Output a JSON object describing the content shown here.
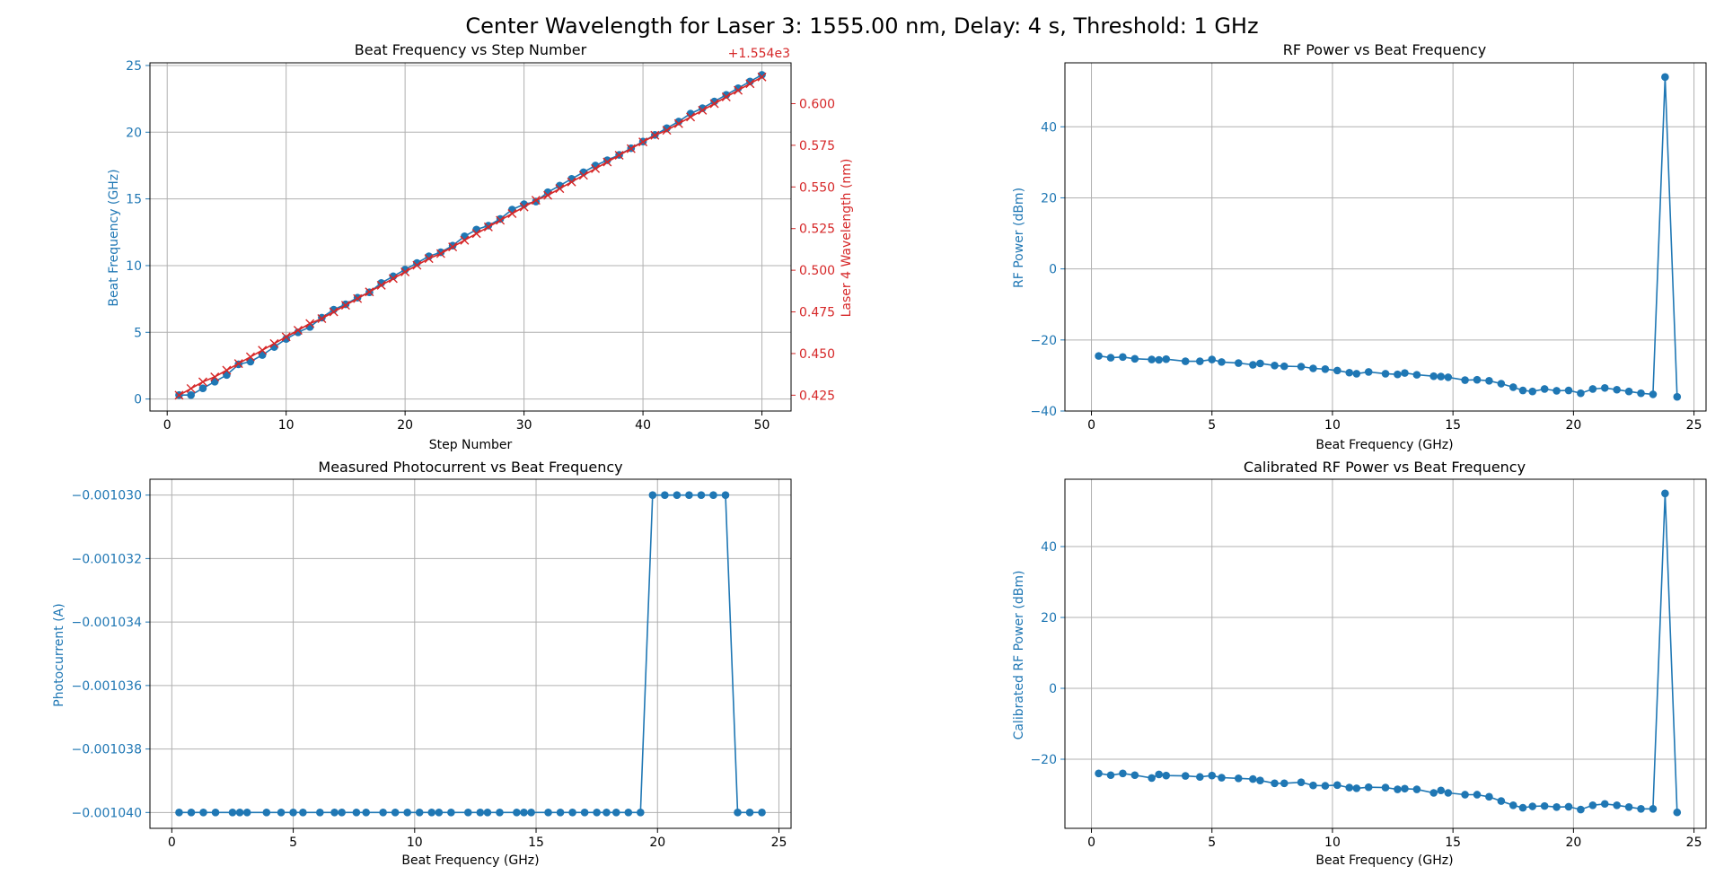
{
  "suptitle": "Center Wavelength for Laser 3: 1555.00 nm, Delay: 4 s, Threshold: 1 GHz",
  "colors": {
    "blue": "#1f77b4",
    "red": "#d62728",
    "grid": "#b0b0b0"
  },
  "chart_data": [
    {
      "type": "line",
      "title": "Beat Frequency vs Step Number",
      "xlabel": "Step Number",
      "ylabel": "Beat Frequency (GHz)",
      "y2label": "Laser 4 Wavelength (nm)",
      "y2_offset_label": "+1.554e3",
      "xlim": [
        -1.45,
        52.45
      ],
      "ylim": [
        -0.9,
        25.2
      ],
      "y2lim": [
        1554.4155,
        1554.6245
      ],
      "xticks": [
        "0",
        "10",
        "20",
        "30",
        "40",
        "50"
      ],
      "yticks": [
        "0",
        "5",
        "10",
        "15",
        "20",
        "25"
      ],
      "y2ticks": [
        "0.425",
        "0.450",
        "0.475",
        "0.500",
        "0.525",
        "0.550",
        "0.575",
        "0.600"
      ],
      "grid": true,
      "series": [
        {
          "axis": "left",
          "marker": "circle",
          "x": [
            1,
            2,
            3,
            4,
            5,
            6,
            7,
            8,
            9,
            10,
            11,
            12,
            13,
            14,
            15,
            16,
            17,
            18,
            19,
            20,
            21,
            22,
            23,
            24,
            25,
            26,
            27,
            28,
            29,
            30,
            31,
            32,
            33,
            34,
            35,
            36,
            37,
            38,
            39,
            40,
            41,
            42,
            43,
            44,
            45,
            46,
            47,
            48,
            49,
            50
          ],
          "values": [
            0.3,
            0.3,
            0.8,
            1.3,
            1.8,
            2.6,
            2.8,
            3.3,
            3.9,
            4.5,
            5.0,
            5.4,
            6.1,
            6.7,
            7.1,
            7.6,
            8.0,
            8.7,
            9.2,
            9.7,
            10.2,
            10.7,
            11.0,
            11.5,
            12.2,
            12.7,
            13.0,
            13.5,
            14.2,
            14.6,
            14.8,
            15.5,
            16.0,
            16.5,
            17.0,
            17.5,
            17.9,
            18.3,
            18.8,
            19.3,
            19.8,
            20.3,
            20.8,
            21.4,
            21.8,
            22.3,
            22.8,
            23.3,
            23.8,
            24.3
          ]
        },
        {
          "axis": "right",
          "marker": "x",
          "x": [
            1,
            2,
            3,
            4,
            5,
            6,
            7,
            8,
            9,
            10,
            11,
            12,
            13,
            14,
            15,
            16,
            17,
            18,
            19,
            20,
            21,
            22,
            23,
            24,
            25,
            26,
            27,
            28,
            29,
            30,
            31,
            32,
            33,
            34,
            35,
            36,
            37,
            38,
            39,
            40,
            41,
            42,
            43,
            44,
            45,
            46,
            47,
            48,
            49,
            50
          ],
          "values": [
            1554.425,
            1554.429,
            1554.433,
            1554.436,
            1554.44,
            1554.444,
            1554.448,
            1554.452,
            1554.456,
            1554.46,
            1554.464,
            1554.468,
            1554.471,
            1554.475,
            1554.479,
            1554.483,
            1554.487,
            1554.491,
            1554.495,
            1554.499,
            1554.503,
            1554.507,
            1554.51,
            1554.514,
            1554.518,
            1554.522,
            1554.526,
            1554.53,
            1554.534,
            1554.538,
            1554.542,
            1554.545,
            1554.549,
            1554.553,
            1554.557,
            1554.561,
            1554.565,
            1554.569,
            1554.573,
            1554.577,
            1554.581,
            1554.584,
            1554.588,
            1554.592,
            1554.596,
            1554.6,
            1554.604,
            1554.608,
            1554.612,
            1554.616
          ]
        }
      ]
    },
    {
      "type": "line",
      "title": "RF Power vs Beat Frequency",
      "xlabel": "Beat Frequency (GHz)",
      "ylabel": "RF Power (dBm)",
      "xlim": [
        -1.1,
        25.5
      ],
      "ylim": [
        -40,
        58
      ],
      "xticks": [
        "0",
        "5",
        "10",
        "15",
        "20",
        "25"
      ],
      "yticks": [
        "−40",
        "−20",
        "0",
        "20",
        "40"
      ],
      "grid": true,
      "series": [
        {
          "marker": "circle",
          "x": [
            0.3,
            0.8,
            1.3,
            1.8,
            2.5,
            2.8,
            3.1,
            3.9,
            4.5,
            5.0,
            5.4,
            6.1,
            6.7,
            7.0,
            7.6,
            8.0,
            8.7,
            9.2,
            9.7,
            10.2,
            10.7,
            11.0,
            11.5,
            12.2,
            12.7,
            13.0,
            13.5,
            14.2,
            14.5,
            14.8,
            15.5,
            16.0,
            16.5,
            17.0,
            17.5,
            17.9,
            18.3,
            18.8,
            19.3,
            19.8,
            20.3,
            20.8,
            21.3,
            21.8,
            22.3,
            22.8,
            23.3,
            23.8,
            24.3
          ],
          "values": [
            -24.5,
            -25,
            -24.8,
            -25.3,
            -25.5,
            -25.6,
            -25.4,
            -26,
            -26,
            -25.5,
            -26.2,
            -26.5,
            -27,
            -26.6,
            -27.2,
            -27.4,
            -27.5,
            -28,
            -28.2,
            -28.6,
            -29.2,
            -29.5,
            -29,
            -29.5,
            -29.7,
            -29.3,
            -29.8,
            -30.2,
            -30.3,
            -30.5,
            -31.3,
            -31.2,
            -31.5,
            -32.3,
            -33.3,
            -34.2,
            -34.5,
            -33.8,
            -34.3,
            -34.2,
            -35,
            -33.8,
            -33.5,
            -34,
            -34.5,
            -35,
            -35.3,
            54,
            -36
          ]
        }
      ]
    },
    {
      "type": "line",
      "title": "Measured Photocurrent vs Beat Frequency",
      "xlabel": "Beat Frequency (GHz)",
      "ylabel": "Photocurrent (A)",
      "xlim": [
        -0.9,
        25.5
      ],
      "ylim": [
        -0.0010405,
        -0.0010295
      ],
      "xticks": [
        "0",
        "5",
        "10",
        "15",
        "20",
        "25"
      ],
      "yticks": [
        "−0.001040",
        "−0.001038",
        "−0.001036",
        "−0.001034",
        "−0.001032",
        "−0.001030"
      ],
      "grid": true,
      "series": [
        {
          "marker": "circle",
          "x": [
            0.3,
            0.8,
            1.3,
            1.8,
            2.5,
            2.8,
            3.1,
            3.9,
            4.5,
            5.0,
            5.4,
            6.1,
            6.7,
            7.0,
            7.6,
            8.0,
            8.7,
            9.2,
            9.7,
            10.2,
            10.7,
            11.0,
            11.5,
            12.2,
            12.7,
            13.0,
            13.5,
            14.2,
            14.5,
            14.8,
            15.5,
            16.0,
            16.5,
            17.0,
            17.5,
            17.9,
            18.3,
            18.8,
            19.3,
            19.8,
            20.3,
            20.8,
            21.3,
            21.8,
            22.3,
            22.8,
            23.3,
            23.8,
            24.3
          ],
          "values": [
            -0.00104,
            -0.00104,
            -0.00104,
            -0.00104,
            -0.00104,
            -0.00104,
            -0.00104,
            -0.00104,
            -0.00104,
            -0.00104,
            -0.00104,
            -0.00104,
            -0.00104,
            -0.00104,
            -0.00104,
            -0.00104,
            -0.00104,
            -0.00104,
            -0.00104,
            -0.00104,
            -0.00104,
            -0.00104,
            -0.00104,
            -0.00104,
            -0.00104,
            -0.00104,
            -0.00104,
            -0.00104,
            -0.00104,
            -0.00104,
            -0.00104,
            -0.00104,
            -0.00104,
            -0.00104,
            -0.00104,
            -0.00104,
            -0.00104,
            -0.00104,
            -0.00104,
            -0.00103,
            -0.00103,
            -0.00103,
            -0.00103,
            -0.00103,
            -0.00103,
            -0.00103,
            -0.00104,
            -0.00104,
            -0.00104
          ]
        }
      ]
    },
    {
      "type": "line",
      "title": "Calibrated RF Power vs Beat Frequency",
      "xlabel": "Beat Frequency (GHz)",
      "ylabel": "Calibrated RF Power (dBm)",
      "xlim": [
        -1.1,
        25.5
      ],
      "ylim": [
        -39.5,
        59
      ],
      "xticks": [
        "0",
        "5",
        "10",
        "15",
        "20",
        "25"
      ],
      "yticks": [
        "−20",
        "0",
        "20",
        "40"
      ],
      "grid": true,
      "series": [
        {
          "marker": "circle",
          "x": [
            0.3,
            0.8,
            1.3,
            1.8,
            2.5,
            2.8,
            3.1,
            3.9,
            4.5,
            5.0,
            5.4,
            6.1,
            6.7,
            7.0,
            7.6,
            8.0,
            8.7,
            9.2,
            9.7,
            10.2,
            10.7,
            11.0,
            11.5,
            12.2,
            12.7,
            13.0,
            13.5,
            14.2,
            14.5,
            14.8,
            15.5,
            16.0,
            16.5,
            17.0,
            17.5,
            17.9,
            18.3,
            18.8,
            19.3,
            19.8,
            20.3,
            20.8,
            21.3,
            21.8,
            22.3,
            22.8,
            23.3,
            23.8,
            24.3
          ],
          "values": [
            -24,
            -24.5,
            -24,
            -24.5,
            -25.3,
            -24.3,
            -24.6,
            -24.7,
            -25,
            -24.6,
            -25.2,
            -25.4,
            -25.6,
            -26,
            -26.8,
            -26.8,
            -26.5,
            -27.4,
            -27.5,
            -27.3,
            -28,
            -28.2,
            -27.9,
            -28,
            -28.5,
            -28.3,
            -28.5,
            -29.5,
            -28.8,
            -29.5,
            -30,
            -30,
            -30.6,
            -31.8,
            -33,
            -33.7,
            -33.3,
            -33.2,
            -33.5,
            -33.4,
            -34.2,
            -33,
            -32.6,
            -33,
            -33.5,
            -34,
            -34,
            55,
            -35
          ]
        }
      ]
    }
  ]
}
